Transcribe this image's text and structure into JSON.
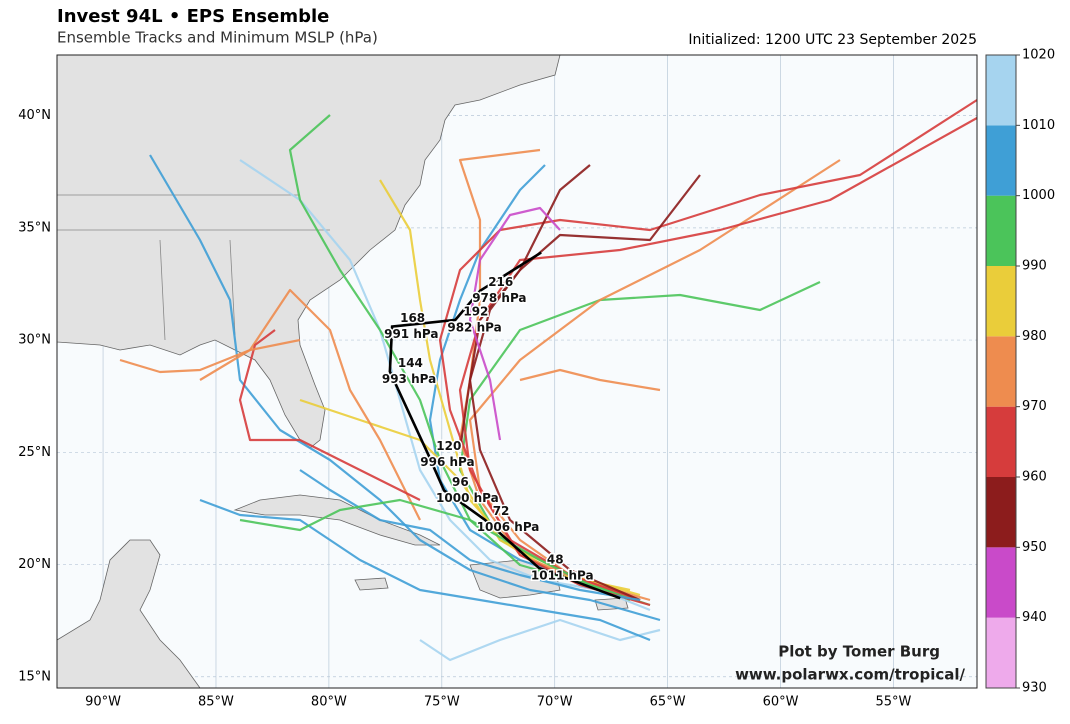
{
  "header": {
    "title": "Invest 94L • EPS Ensemble",
    "subtitle": "Ensemble Tracks and Minimum MSLP (hPa)",
    "initialized": "Initialized: 1200 UTC 23 September 2025"
  },
  "map": {
    "lonlim": [
      -92.04,
      -51.3
    ],
    "latlim": [
      14.5,
      42.7
    ],
    "lon_ticks": [
      {
        "value": -90,
        "label": "90°W"
      },
      {
        "value": -85,
        "label": "85°W"
      },
      {
        "value": -80,
        "label": "80°W"
      },
      {
        "value": -75,
        "label": "75°W"
      },
      {
        "value": -70,
        "label": "70°W"
      },
      {
        "value": -65,
        "label": "65°W"
      },
      {
        "value": -60,
        "label": "60°W"
      },
      {
        "value": -55,
        "label": "55°W"
      }
    ],
    "lat_ticks": [
      {
        "value": 15,
        "label": "15°N"
      },
      {
        "value": 20,
        "label": "20°N"
      },
      {
        "value": 25,
        "label": "25°N"
      },
      {
        "value": 30,
        "label": "30°N"
      },
      {
        "value": 35,
        "label": "35°N"
      },
      {
        "value": 40,
        "label": "40°N"
      }
    ]
  },
  "mean_track": {
    "lon": [
      -67.1,
      -70.7,
      -73.1,
      -74.9,
      -75.6,
      -77.3,
      -77.2,
      -74.4,
      -73.3,
      -70.6
    ],
    "lat": [
      18.5,
      19.85,
      22.0,
      23.3,
      24.9,
      28.6,
      30.6,
      30.9,
      32.2,
      33.9
    ],
    "hours": [
      null,
      48,
      72,
      96,
      120,
      144,
      168,
      192,
      216,
      null
    ],
    "labels": [
      null,
      "1011 hPa",
      "1006 hPa",
      "1000 hPa",
      "996 hPa",
      "993 hPa",
      "991 hPa",
      "982 hPa",
      "978 hPa",
      null
    ]
  },
  "colorbar": {
    "lim": [
      930,
      1020
    ],
    "ticks": [
      930,
      940,
      950,
      960,
      970,
      980,
      990,
      1000,
      1010,
      1020
    ],
    "colors": [
      "#eeaaeb",
      "#c94ac9",
      "#8c1c1c",
      "#d63c3c",
      "#ee8c4f",
      "#eacd3a",
      "#4bc45a",
      "#3f9fd6",
      "#a6d4ef"
    ]
  },
  "credit": {
    "line1": "Plot by Tomer Burg",
    "line2": "www.polarwx.com/tropical/"
  }
}
